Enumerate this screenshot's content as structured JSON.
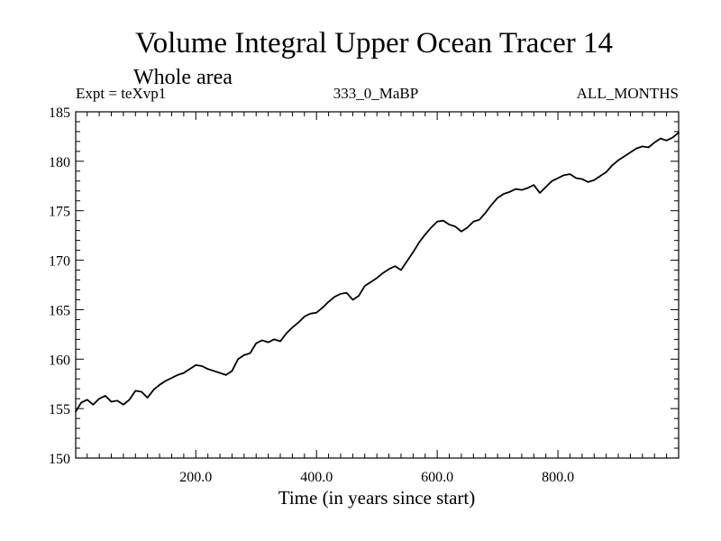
{
  "chart_data": {
    "type": "line",
    "title": "Volume Integral Upper Ocean Tracer 14",
    "subtitle": "Whole area",
    "expt_label": "Expt = teXvp1",
    "run_label": "333_0_MaBP",
    "period_label": "ALL_MONTHS",
    "xlabel": "Time (in years since start)",
    "ylabel": "",
    "xlim": [
      1,
      1000
    ],
    "ylim": [
      150,
      185
    ],
    "x_ticks": [
      200,
      400,
      600,
      800
    ],
    "x_tick_labels": [
      "200.0",
      "400.0",
      "600.0",
      "800.0"
    ],
    "y_ticks": [
      150,
      155,
      160,
      165,
      170,
      175,
      180,
      185
    ],
    "y_tick_labels": [
      "150",
      "155",
      "160",
      "165",
      "170",
      "175",
      "180",
      "185"
    ],
    "grid": false,
    "series": [
      {
        "name": "Volume Integral Upper Ocean Tracer 14",
        "x": [
          1,
          10,
          20,
          30,
          40,
          50,
          60,
          70,
          80,
          90,
          100,
          110,
          120,
          130,
          140,
          150,
          160,
          170,
          180,
          190,
          200,
          210,
          220,
          230,
          240,
          250,
          260,
          270,
          280,
          290,
          300,
          310,
          320,
          330,
          340,
          350,
          360,
          370,
          380,
          390,
          400,
          410,
          420,
          430,
          440,
          450,
          460,
          470,
          480,
          490,
          500,
          510,
          520,
          530,
          540,
          550,
          560,
          570,
          580,
          590,
          600,
          610,
          620,
          630,
          640,
          650,
          660,
          670,
          680,
          690,
          700,
          710,
          720,
          730,
          740,
          750,
          760,
          770,
          780,
          790,
          800,
          810,
          820,
          830,
          840,
          850,
          860,
          870,
          880,
          890,
          900,
          910,
          920,
          930,
          940,
          950,
          960,
          970,
          980,
          990,
          1000
        ],
        "values": [
          154.7,
          155.6,
          155.9,
          155.4,
          156.0,
          156.3,
          155.7,
          155.8,
          155.4,
          155.9,
          156.8,
          156.7,
          156.1,
          156.9,
          157.4,
          157.8,
          158.1,
          158.4,
          158.6,
          159.0,
          159.4,
          159.3,
          159.0,
          158.8,
          158.6,
          158.4,
          158.8,
          160.0,
          160.4,
          160.6,
          161.6,
          161.9,
          161.7,
          162.0,
          161.8,
          162.6,
          163.2,
          163.7,
          164.3,
          164.6,
          164.7,
          165.2,
          165.8,
          166.3,
          166.6,
          166.7,
          166.0,
          166.4,
          167.4,
          167.8,
          168.2,
          168.7,
          169.1,
          169.4,
          169.0,
          169.9,
          170.8,
          171.8,
          172.6,
          173.3,
          173.9,
          174.0,
          173.6,
          173.4,
          172.9,
          173.3,
          173.9,
          174.1,
          174.8,
          175.6,
          176.3,
          176.7,
          176.9,
          177.2,
          177.1,
          177.3,
          177.6,
          176.8,
          177.4,
          178.0,
          178.3,
          178.6,
          178.7,
          178.3,
          178.2,
          177.9,
          178.1,
          178.5,
          178.9,
          179.6,
          180.1,
          180.5,
          180.9,
          181.3,
          181.5,
          181.4,
          181.9,
          182.3,
          182.1,
          182.4,
          182.9
        ]
      }
    ]
  }
}
